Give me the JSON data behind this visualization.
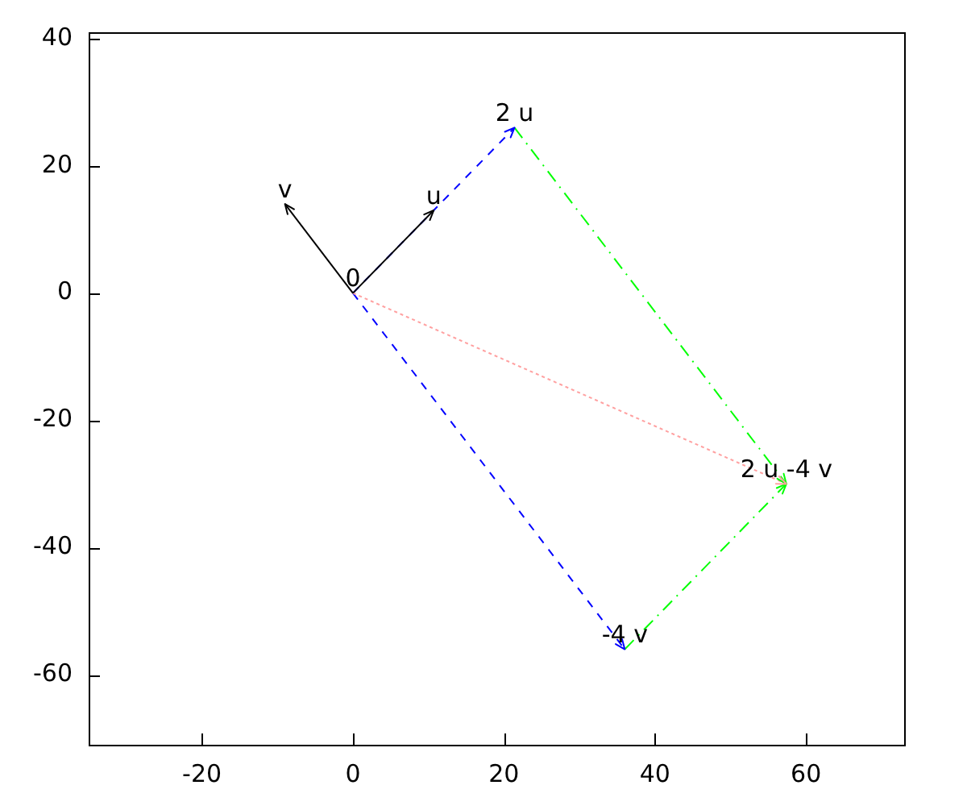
{
  "chart_data": {
    "type": "line",
    "xlim": [
      -35,
      73
    ],
    "ylim": [
      -71,
      41
    ],
    "xticks": [
      -20,
      0,
      20,
      40,
      60
    ],
    "yticks": [
      -60,
      -40,
      -20,
      0,
      20,
      40
    ],
    "series": [
      {
        "color": "#0000ff",
        "line_style": "dashed",
        "x": [
          0,
          21.4
        ],
        "values": [
          0,
          26
        ]
      },
      {
        "color": "#0000ff",
        "line_style": "dashed",
        "x": [
          0,
          36
        ],
        "values": [
          0,
          -56
        ]
      },
      {
        "color": "#00ff00",
        "line_style": "dashdot",
        "x": [
          21.4,
          57.4
        ],
        "values": [
          26,
          -30
        ]
      },
      {
        "color": "#00ff00",
        "line_style": "dashdot",
        "x": [
          36,
          57.4
        ],
        "values": [
          -56,
          -30
        ]
      },
      {
        "color": "#ffa0a0",
        "line_style": "dotted",
        "x": [
          0,
          57.4
        ],
        "values": [
          0,
          -30
        ]
      },
      {
        "color": "#000000",
        "line_style": "solid",
        "x": [
          0,
          10.7
        ],
        "values": [
          0,
          13
        ]
      },
      {
        "color": "#000000",
        "line_style": "solid",
        "x": [
          0,
          -9
        ],
        "values": [
          0,
          14
        ]
      }
    ],
    "annotations": [
      {
        "text": "0",
        "x": 0,
        "y": 0
      },
      {
        "text": "u",
        "x": 10.7,
        "y": 13
      },
      {
        "text": "v",
        "x": -9,
        "y": 14
      },
      {
        "text": "2 u",
        "x": 21.4,
        "y": 26
      },
      {
        "text": "-4 v",
        "x": 36,
        "y": -56
      },
      {
        "text": "2 u -4 v",
        "x": 57.4,
        "y": -30
      }
    ]
  }
}
